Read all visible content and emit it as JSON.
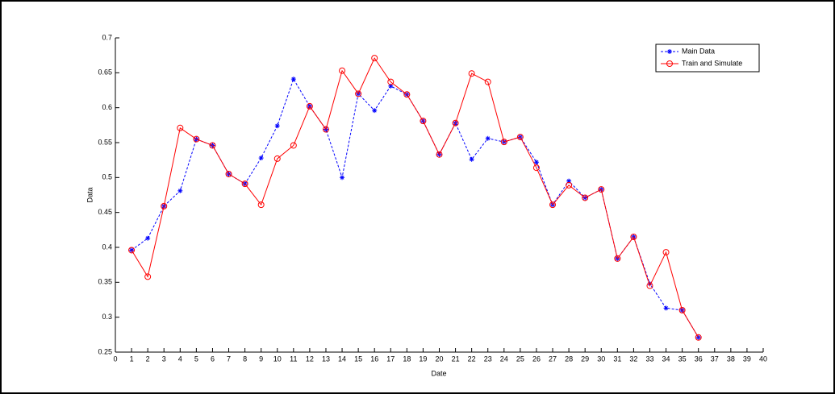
{
  "chart_data": {
    "type": "line",
    "x_label": "Date",
    "y_label": "Data",
    "x": [
      1,
      2,
      3,
      4,
      5,
      6,
      7,
      8,
      9,
      10,
      11,
      12,
      13,
      14,
      15,
      16,
      17,
      18,
      19,
      20,
      21,
      22,
      23,
      24,
      25,
      26,
      27,
      28,
      29,
      30,
      31,
      32,
      33,
      34,
      35,
      36
    ],
    "series": [
      {
        "name": "Main Data",
        "color": "#0000ff",
        "line_style": "dashed",
        "marker": "star",
        "values": [
          0.396,
          0.413,
          0.459,
          0.481,
          0.555,
          0.546,
          0.505,
          0.491,
          0.528,
          0.574,
          0.641,
          0.602,
          0.569,
          0.5,
          0.62,
          0.596,
          0.631,
          0.619,
          0.581,
          0.533,
          0.578,
          0.526,
          0.556,
          0.551,
          0.558,
          0.522,
          0.461,
          0.495,
          0.471,
          0.483,
          0.384,
          0.415,
          0.348,
          0.313,
          0.31,
          0.271
        ]
      },
      {
        "name": "Train and Simulate",
        "color": "#ff0000",
        "line_style": "solid",
        "marker": "circle",
        "values": [
          0.396,
          0.358,
          0.459,
          0.571,
          0.555,
          0.546,
          0.505,
          0.491,
          0.461,
          0.527,
          0.546,
          0.602,
          0.569,
          0.653,
          0.62,
          0.671,
          0.637,
          0.619,
          0.581,
          0.533,
          0.578,
          0.649,
          0.637,
          0.551,
          0.558,
          0.514,
          0.461,
          0.489,
          0.471,
          0.483,
          0.384,
          0.415,
          0.345,
          0.393,
          0.31,
          0.271
        ]
      }
    ],
    "xlim": [
      0,
      40
    ],
    "xticks": [
      0,
      1,
      2,
      3,
      4,
      5,
      6,
      7,
      8,
      9,
      10,
      11,
      12,
      13,
      14,
      15,
      16,
      17,
      18,
      19,
      20,
      21,
      22,
      23,
      24,
      25,
      26,
      27,
      28,
      29,
      30,
      31,
      32,
      33,
      34,
      35,
      36,
      37,
      38,
      39,
      40
    ],
    "ylim": [
      0.25,
      0.7
    ],
    "yticks": [
      0.25,
      0.3,
      0.35,
      0.4,
      0.45,
      0.5,
      0.55,
      0.6,
      0.65,
      0.7
    ],
    "legend": "top-right"
  }
}
